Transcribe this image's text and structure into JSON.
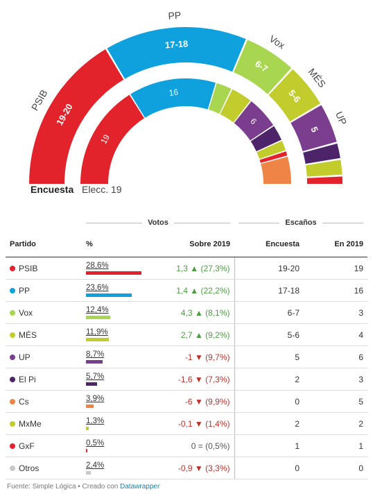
{
  "chart_data": {
    "type": "table",
    "hemicycle": {
      "rings": [
        {
          "name": "Encuesta",
          "seats": [
            {
              "party": "PSIB",
              "label": "19-20",
              "share": 19.5,
              "color": "#e2232b"
            },
            {
              "party": "PP",
              "label": "17-18",
              "share": 17.5,
              "color": "#0ea1de"
            },
            {
              "party": "Vox",
              "label": "6-7",
              "share": 6.5,
              "color": "#a9d651"
            },
            {
              "party": "MÉS",
              "label": "5-6",
              "share": 5.5,
              "color": "#c2cd2d"
            },
            {
              "party": "UP",
              "label": "5",
              "share": 5,
              "color": "#7b3e8e"
            },
            {
              "party": "El Pi",
              "label": "",
              "share": 2,
              "color": "#4d2469"
            },
            {
              "party": "MxMe",
              "label": "",
              "share": 2,
              "color": "#c2cd2d"
            },
            {
              "party": "GxF",
              "label": "",
              "share": 1,
              "color": "#e2232b"
            }
          ]
        },
        {
          "name": "Elecc. 19",
          "seats": [
            {
              "party": "PSIB",
              "label": "19",
              "share": 19,
              "color": "#e2232b"
            },
            {
              "party": "PP",
              "label": "16",
              "share": 16,
              "color": "#0ea1de"
            },
            {
              "party": "Vox",
              "label": "",
              "share": 3,
              "color": "#a9d651"
            },
            {
              "party": "MÉS",
              "label": "",
              "share": 4,
              "color": "#c2cd2d"
            },
            {
              "party": "UP",
              "label": "6",
              "share": 6,
              "color": "#7b3e8e"
            },
            {
              "party": "El Pi",
              "label": "",
              "share": 3,
              "color": "#4d2469"
            },
            {
              "party": "MxMe",
              "label": "",
              "share": 2,
              "color": "#c2cd2d"
            },
            {
              "party": "GxF",
              "label": "",
              "share": 1,
              "color": "#e2232b"
            },
            {
              "party": "Cs",
              "label": "",
              "share": 5,
              "color": "#ee8445"
            }
          ]
        }
      ],
      "outer_labels": [
        "PSIB",
        "PP",
        "Vox",
        "MÉS",
        "UP"
      ]
    }
  },
  "table": {
    "group_votos": "Votos",
    "group_escanos": "Escaños",
    "headers": {
      "partido": "Partido",
      "pct": "%",
      "sobre": "Sobre 2019",
      "encuesta": "Encuesta",
      "en2019": "En 2019"
    },
    "rows": [
      {
        "party": "PSIB",
        "color": "#e2232b",
        "pct": "28,6%",
        "pct_value": 28.6,
        "change": "1,3 ▲ (27,3%)",
        "dir": "pos",
        "encuesta": "19-20",
        "en2019": "19"
      },
      {
        "party": "PP",
        "color": "#0ea1de",
        "pct": "23,6%",
        "pct_value": 23.6,
        "change": "1,4 ▲ (22,2%)",
        "dir": "pos",
        "encuesta": "17-18",
        "en2019": "16"
      },
      {
        "party": "Vox",
        "color": "#a9d651",
        "pct": "12,4%",
        "pct_value": 12.4,
        "change": "4,3 ▲ (8,1%)",
        "dir": "pos",
        "encuesta": "6-7",
        "en2019": "3"
      },
      {
        "party": "MÉS",
        "color": "#c2cd2d",
        "pct": "11,9%",
        "pct_value": 11.9,
        "change": "2,7 ▲ (9,2%)",
        "dir": "pos",
        "encuesta": "5-6",
        "en2019": "4"
      },
      {
        "party": "UP",
        "color": "#7b3e8e",
        "pct": "8,7%",
        "pct_value": 8.7,
        "change": "-1 ▼ (9,7%)",
        "dir": "neg",
        "encuesta": "5",
        "en2019": "6"
      },
      {
        "party": "El Pi",
        "color": "#4d2469",
        "pct": "5,7%",
        "pct_value": 5.7,
        "change": "-1,6 ▼ (7,3%)",
        "dir": "neg",
        "encuesta": "2",
        "en2019": "3"
      },
      {
        "party": "Cs",
        "color": "#ee8445",
        "pct": "3,9%",
        "pct_value": 3.9,
        "change": "-6 ▼ (9,9%)",
        "dir": "neg",
        "encuesta": "0",
        "en2019": "5"
      },
      {
        "party": "MxMe",
        "color": "#c2cd2d",
        "pct": "1,3%",
        "pct_value": 1.3,
        "change": "-0,1 ▼ (1,4%)",
        "dir": "neg",
        "encuesta": "2",
        "en2019": "2"
      },
      {
        "party": "GxF",
        "color": "#e2232b",
        "pct": "0,5%",
        "pct_value": 0.5,
        "change": "0 = (0,5%)",
        "dir": "neu",
        "encuesta": "1",
        "en2019": "1"
      },
      {
        "party": "Otros",
        "color": "#c8c8c8",
        "pct": "2,4%",
        "pct_value": 2.4,
        "change": "-0,9 ▼ (3,3%)",
        "dir": "neg",
        "encuesta": "0",
        "en2019": "0"
      }
    ]
  },
  "captions": {
    "outer": "Encuesta",
    "inner": "Elecc. 19"
  },
  "footer": {
    "text": "Fuente: Simple Lógica • Creado con ",
    "link": "Datawrapper"
  }
}
